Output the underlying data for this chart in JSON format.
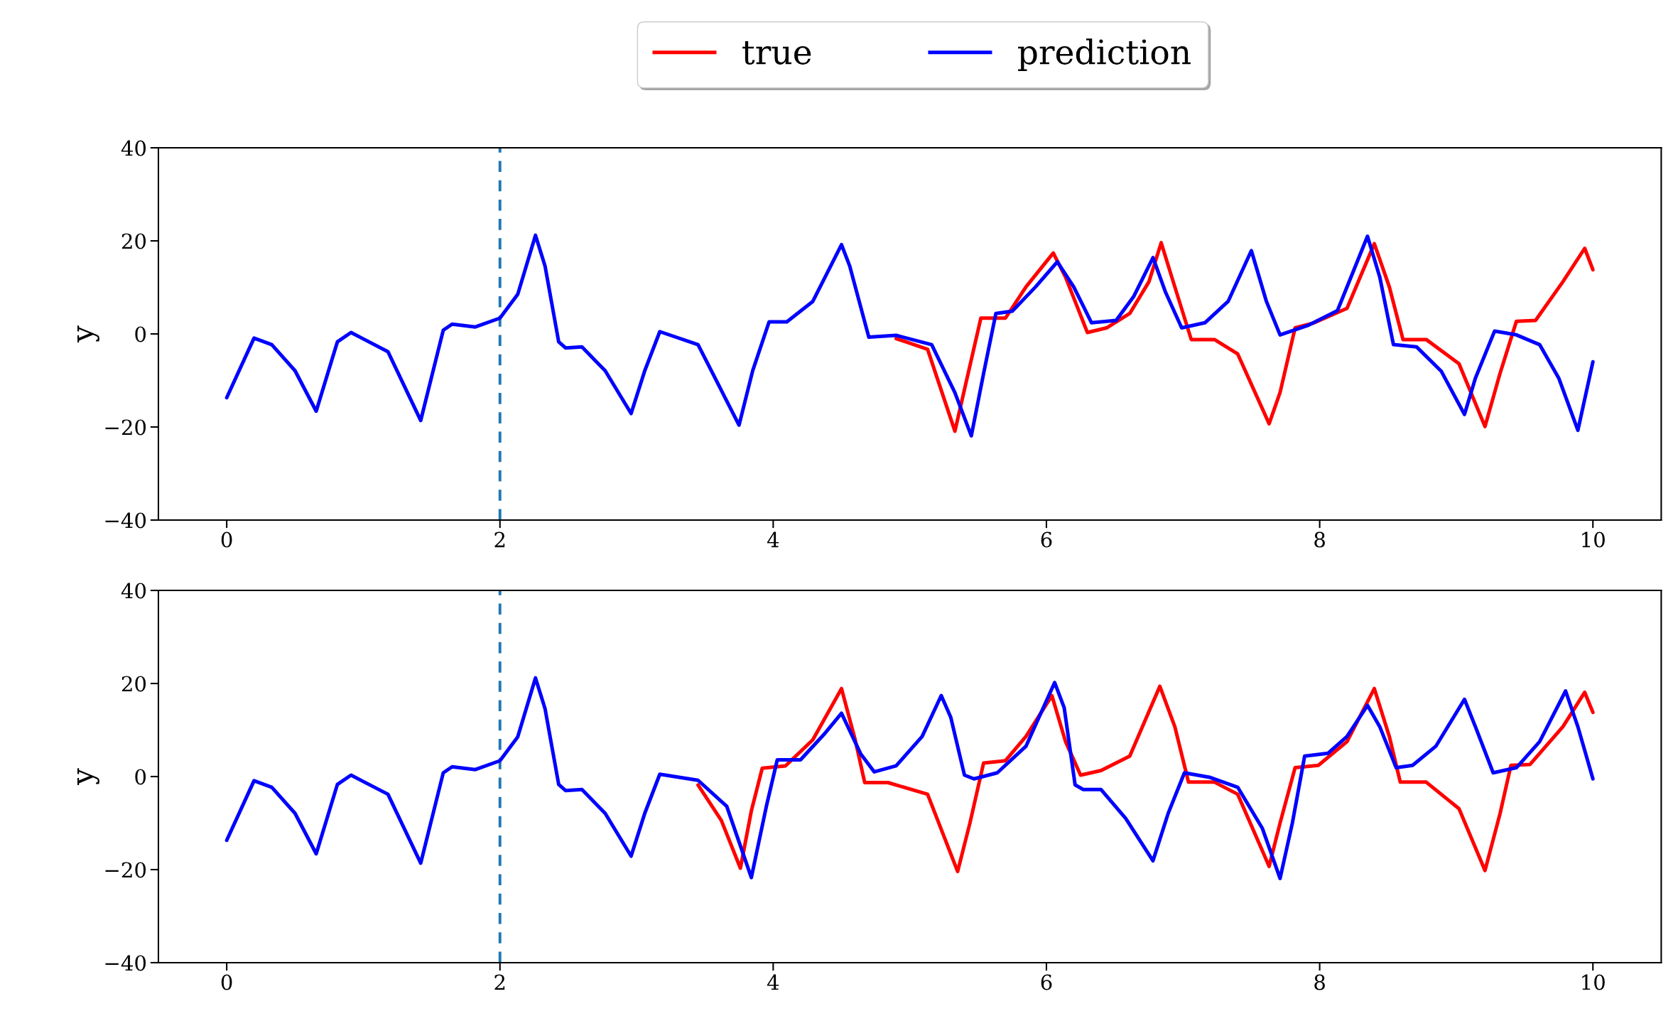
{
  "chart_data": [
    {
      "type": "line",
      "ylabel": "y",
      "xlim": [
        -0.5,
        10.5
      ],
      "ylim": [
        -40,
        40
      ],
      "xticks": [
        0,
        2,
        4,
        6,
        8,
        10
      ],
      "yticks": [
        -40,
        -20,
        0,
        20,
        40
      ],
      "grid": false,
      "legend": "top",
      "line_style": "solid",
      "marker": "none",
      "ref_lines": [
        {
          "axis": "x",
          "value": 2,
          "color": "#1f77b4",
          "line_style": "dashed"
        }
      ],
      "series": [
        {
          "name": "true",
          "color": "#ff0000",
          "x": [
            4.9,
            5.13,
            5.33,
            5.52,
            5.7,
            5.85,
            6.05,
            6.14,
            6.3,
            6.44,
            6.61,
            6.75,
            6.84,
            6.94,
            7.06,
            7.23,
            7.4,
            7.63,
            7.71,
            7.82,
            7.96,
            8.2,
            8.4,
            8.51,
            8.61,
            8.78,
            9.02,
            9.21,
            9.32,
            9.44,
            9.58,
            9.78,
            9.94,
            10.0
          ],
          "values": [
            -1.0,
            -3.3,
            -20.9,
            3.4,
            3.4,
            10.1,
            17.4,
            12.2,
            0.3,
            1.3,
            4.4,
            11.2,
            19.6,
            10.1,
            -1.2,
            -1.2,
            -4.3,
            -19.3,
            -12.6,
            1.3,
            2.4,
            5.5,
            19.4,
            10.1,
            -1.2,
            -1.2,
            -6.4,
            -19.9,
            -8.5,
            2.7,
            2.9,
            11.2,
            18.4,
            13.8
          ]
        },
        {
          "name": "prediction",
          "color": "#0000ff",
          "x": [
            0,
            0.2,
            0.33,
            0.5,
            0.655,
            0.81,
            0.91,
            1.18,
            1.42,
            1.585,
            1.65,
            1.82,
            2.0,
            2.13,
            2.26,
            2.33,
            2.43,
            2.48,
            2.6,
            2.77,
            2.96,
            3.06,
            3.17,
            3.45,
            3.75,
            3.85,
            3.97,
            4.1,
            4.29,
            4.5,
            4.56,
            4.7,
            4.9,
            5.16,
            5.33,
            5.45,
            5.54,
            5.63,
            5.75,
            5.92,
            6.08,
            6.2,
            6.33,
            6.51,
            6.64,
            6.78,
            6.87,
            6.99,
            7.16,
            7.33,
            7.5,
            7.61,
            7.71,
            7.92,
            8.13,
            8.35,
            8.44,
            8.54,
            8.71,
            8.89,
            9.06,
            9.14,
            9.28,
            9.44,
            9.61,
            9.75,
            9.89,
            10.0
          ],
          "values": [
            -13.7,
            -0.9,
            -2.3,
            -7.9,
            -16.6,
            -1.7,
            0.3,
            -3.8,
            -18.6,
            0.8,
            2.1,
            1.5,
            3.4,
            8.5,
            21.2,
            14.6,
            -1.7,
            -3.0,
            -2.8,
            -7.9,
            -17.1,
            -7.9,
            0.5,
            -2.3,
            -19.6,
            -7.9,
            2.6,
            2.6,
            7.0,
            19.2,
            14.6,
            -0.7,
            -0.3,
            -2.3,
            -12.6,
            -21.9,
            -8.5,
            4.4,
            4.9,
            10.1,
            15.5,
            10.1,
            2.4,
            2.9,
            8.1,
            16.4,
            9.1,
            1.3,
            2.4,
            7.0,
            17.9,
            7.0,
            -0.2,
            1.9,
            5.0,
            21.0,
            12.2,
            -2.3,
            -2.8,
            -8.0,
            -17.3,
            -9.5,
            0.6,
            -0.2,
            -2.3,
            -9.5,
            -20.7,
            -6.0
          ]
        }
      ]
    },
    {
      "type": "line",
      "ylabel": "y",
      "xlim": [
        -0.5,
        10.5
      ],
      "ylim": [
        -40,
        40
      ],
      "xticks": [
        0,
        2,
        4,
        6,
        8,
        10
      ],
      "yticks": [
        -40,
        -20,
        0,
        20,
        40
      ],
      "grid": false,
      "line_style": "solid",
      "marker": "none",
      "ref_lines": [
        {
          "axis": "x",
          "value": 2,
          "color": "#1f77b4",
          "line_style": "dashed"
        }
      ],
      "series": [
        {
          "color": "#ff0000",
          "x": [
            3.45,
            3.62,
            3.76,
            3.84,
            3.92,
            4.09,
            4.29,
            4.5,
            4.6,
            4.67,
            4.84,
            5.13,
            5.35,
            5.44,
            5.54,
            5.7,
            5.85,
            6.04,
            6.14,
            6.25,
            6.4,
            6.61,
            6.83,
            6.94,
            7.04,
            7.23,
            7.4,
            7.63,
            7.71,
            7.82,
            7.99,
            8.2,
            8.4,
            8.51,
            8.59,
            8.78,
            9.02,
            9.21,
            9.32,
            9.4,
            9.54,
            9.78,
            9.94,
            10.0
          ],
          "values": [
            -1.8,
            -9.4,
            -19.7,
            -7.4,
            1.8,
            2.3,
            7.9,
            18.9,
            7.9,
            -1.3,
            -1.3,
            -3.8,
            -20.4,
            -10.0,
            2.9,
            3.4,
            8.6,
            17.4,
            7.5,
            0.3,
            1.3,
            4.4,
            19.4,
            10.7,
            -1.2,
            -1.2,
            -3.8,
            -19.3,
            -10.0,
            1.9,
            2.4,
            7.5,
            18.9,
            8.6,
            -1.2,
            -1.2,
            -6.9,
            -20.2,
            -8.0,
            2.4,
            2.6,
            10.7,
            18.1,
            13.8
          ]
        },
        {
          "color": "#0000ff",
          "x": [
            0,
            0.2,
            0.33,
            0.5,
            0.655,
            0.81,
            0.91,
            1.18,
            1.42,
            1.585,
            1.65,
            1.82,
            2.0,
            2.13,
            2.26,
            2.33,
            2.43,
            2.48,
            2.6,
            2.77,
            2.96,
            3.06,
            3.17,
            3.45,
            3.66,
            3.84,
            3.95,
            4.03,
            4.2,
            4.37,
            4.5,
            4.64,
            4.74,
            4.9,
            5.09,
            5.23,
            5.3,
            5.4,
            5.47,
            5.64,
            5.85,
            6.06,
            6.13,
            6.21,
            6.27,
            6.4,
            6.58,
            6.78,
            6.89,
            7.01,
            7.2,
            7.4,
            7.58,
            7.71,
            7.8,
            7.89,
            8.06,
            8.2,
            8.35,
            8.44,
            8.56,
            8.68,
            8.85,
            9.06,
            9.14,
            9.27,
            9.44,
            9.61,
            9.8,
            9.89,
            10.0
          ],
          "values": [
            -13.7,
            -0.9,
            -2.3,
            -7.9,
            -16.6,
            -1.7,
            0.3,
            -3.8,
            -18.6,
            0.8,
            2.1,
            1.5,
            3.4,
            8.5,
            21.2,
            14.6,
            -1.7,
            -3.0,
            -2.8,
            -7.9,
            -17.1,
            -7.9,
            0.5,
            -0.8,
            -6.4,
            -21.7,
            -6.4,
            3.6,
            3.6,
            9.0,
            13.6,
            4.9,
            1.0,
            2.3,
            8.6,
            17.4,
            12.7,
            0.3,
            -0.5,
            0.8,
            6.5,
            20.2,
            14.8,
            -1.8,
            -2.8,
            -2.8,
            -9.0,
            -18.1,
            -8.0,
            0.8,
            -0.2,
            -2.3,
            -11.1,
            -21.9,
            -10.0,
            4.4,
            5.0,
            8.6,
            15.3,
            10.7,
            1.9,
            2.4,
            6.5,
            16.6,
            10.7,
            0.8,
            1.9,
            7.5,
            18.4,
            10.7,
            -0.5
          ]
        }
      ]
    }
  ]
}
